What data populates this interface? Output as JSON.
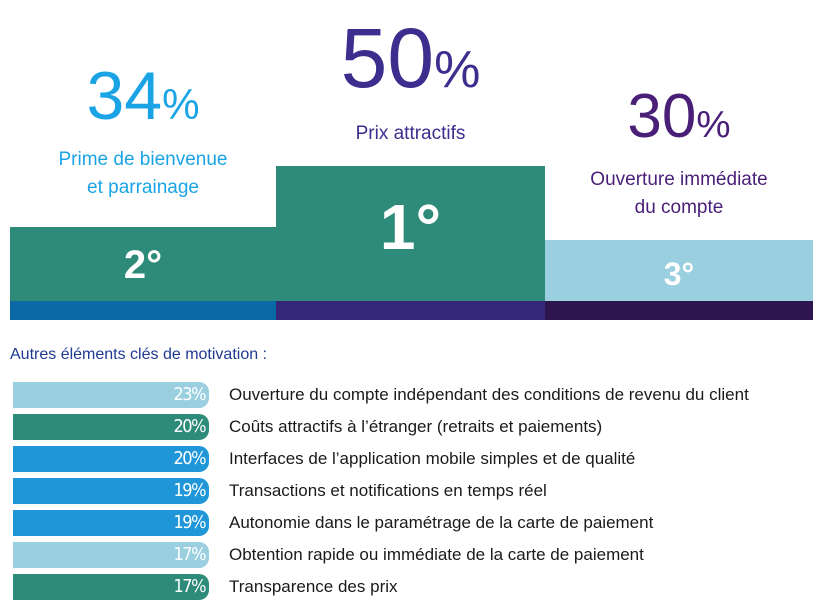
{
  "chart_data": [
    {
      "type": "bar",
      "podium": [
        {
          "rank": "1°",
          "value": 50,
          "unit": "%",
          "label_lines": [
            "Prix attractifs"
          ],
          "color": "#2e8b7a",
          "base_color": "#362878",
          "value_color": "#3c2e8e",
          "label_color": "#3c2e8e"
        },
        {
          "rank": "2°",
          "value": 34,
          "unit": "%",
          "label_lines": [
            "Prime de bienvenue",
            "et parrainage"
          ],
          "color": "#2e8b7a",
          "base_color": "#0b6aa6",
          "value_color": "#1aa4e6",
          "label_color": "#1aa4e6"
        },
        {
          "rank": "3°",
          "value": 30,
          "unit": "%",
          "label_lines": [
            "Ouverture immédiate",
            "du compte"
          ],
          "color": "#9acfe0",
          "base_color": "#2d1650",
          "value_color": "#4a1f78",
          "label_color": "#4a1f78"
        }
      ]
    },
    {
      "type": "bar",
      "title": "Autres éléments clés de motivation :",
      "orientation": "horizontal",
      "unit": "%",
      "categories": [
        "Ouverture du compte indépendant des conditions de revenu du client",
        "Coûts attractifs à l’étranger (retraits et paiements)",
        "Interfaces de l’application mobile simples et de qualité",
        "Transactions et notifications en temps réel",
        "Autonomie dans le paramétrage de la carte de paiement",
        "Obtention rapide ou immédiate de la carte de paiement",
        "Transparence des prix"
      ],
      "values": [
        23,
        20,
        20,
        19,
        19,
        17,
        17
      ],
      "value_labels": [
        "23%",
        "20%",
        "20%",
        "19%",
        "19%",
        "17%",
        "17%"
      ],
      "bar_colors": [
        "#9acfe0",
        "#2e8b7a",
        "#1f96d8",
        "#1f96d8",
        "#1f96d8",
        "#9acfe0",
        "#2e8b7a"
      ]
    }
  ]
}
